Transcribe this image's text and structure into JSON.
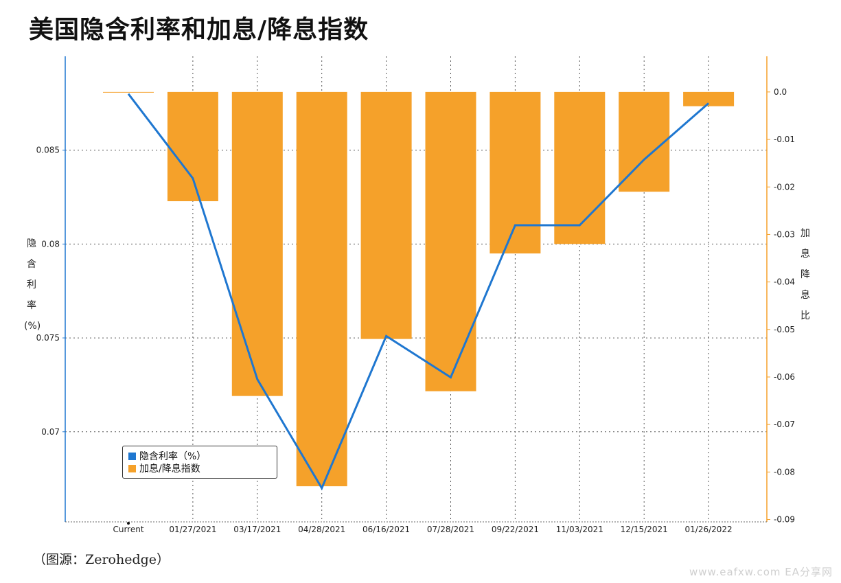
{
  "title": "美国隐含利率和加息/降息指数",
  "source": "（图源：Zerohedge）",
  "watermark": "www.eafxw.com  EA分享网",
  "left_axis_label": [
    "隐",
    "含",
    "利",
    "率",
    "(%)"
  ],
  "right_axis_label": [
    "加",
    "息",
    "降",
    "息",
    "比"
  ],
  "colors": {
    "line": "#1f77d0",
    "bar": "#f5a12a",
    "right_axis": "#f5a12a",
    "left_axis": "#1f77d0",
    "grid": "#555555"
  },
  "chart_data": {
    "type": "bar+line",
    "categories": [
      "Current",
      "01/27/2021",
      "03/17/2021",
      "04/28/2021",
      "06/16/2021",
      "07/28/2021",
      "09/22/2021",
      "11/03/2021",
      "12/15/2021",
      "01/26/2022"
    ],
    "series": [
      {
        "name": "隐含利率（%）",
        "type": "line",
        "axis": "left",
        "values": [
          0.088,
          0.0835,
          0.0728,
          0.067,
          0.0751,
          0.0729,
          0.081,
          0.081,
          0.0845,
          0.0875
        ]
      },
      {
        "name": "加息/降息指数",
        "type": "bar",
        "axis": "right",
        "values": [
          0.0,
          -0.023,
          -0.064,
          -0.083,
          -0.052,
          -0.063,
          -0.034,
          -0.032,
          -0.021,
          -0.003
        ]
      }
    ],
    "left_axis": {
      "ticks": [
        "0.07",
        "0.075",
        "0.08",
        "0.085"
      ],
      "tick_values": [
        0.07,
        0.075,
        0.08,
        0.085
      ],
      "ylim": [
        0.0652,
        0.09
      ]
    },
    "right_axis": {
      "ticks": [
        "0.0",
        "-0.01",
        "-0.02",
        "-0.03",
        "-0.04",
        "-0.05",
        "-0.06",
        "-0.07",
        "-0.08",
        "-0.09"
      ],
      "tick_values": [
        0.0,
        -0.01,
        -0.02,
        -0.03,
        -0.04,
        -0.05,
        -0.06,
        -0.07,
        -0.08,
        -0.09
      ],
      "ylim": [
        -0.0905,
        0.0075
      ]
    },
    "legend": {
      "position": "bottom-left",
      "entries": [
        "隐含利率（%）",
        "加息/降息指数"
      ]
    },
    "grid": true
  }
}
